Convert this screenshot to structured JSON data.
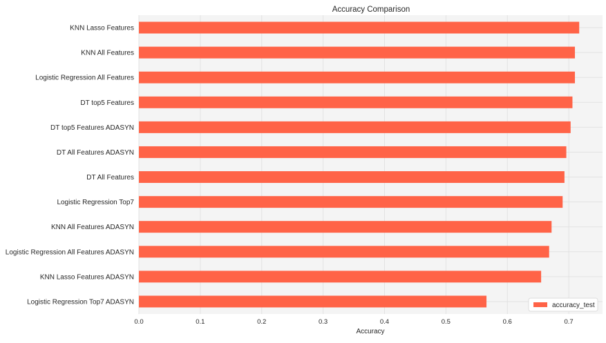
{
  "chart_data": {
    "type": "bar",
    "orientation": "horizontal",
    "title": "Accuracy Comparison",
    "xlabel": "Accuracy",
    "ylabel": "",
    "xlim": [
      0,
      0.755
    ],
    "xticks": [
      0.0,
      0.1,
      0.2,
      0.3,
      0.4,
      0.5,
      0.6,
      0.7
    ],
    "xtick_labels": [
      "0.0",
      "0.1",
      "0.2",
      "0.3",
      "0.4",
      "0.5",
      "0.6",
      "0.7"
    ],
    "grid": true,
    "legend_position": "bottom-right",
    "categories": [
      "KNN Lasso Features",
      "KNN All Features",
      "Logistic Regression All Features",
      "DT top5 Features",
      "DT top5 Features ADASYN",
      "DT All Features ADASYN",
      "DT All Features",
      "Logistic Regression Top7",
      "KNN All Features ADASYN",
      "Logistic Regression All Features ADASYN",
      "KNN Lasso Features ADASYN",
      "Logistic Regression Top7 ADASYN"
    ],
    "series": [
      {
        "name": "accuracy_test",
        "color": "#ff6347",
        "values": [
          0.717,
          0.71,
          0.71,
          0.706,
          0.703,
          0.696,
          0.693,
          0.69,
          0.672,
          0.668,
          0.655,
          0.566
        ]
      }
    ]
  },
  "colors": {
    "plot_background": "#f4f4f4",
    "grid": "#e2e2e2",
    "bar": "#ff6347"
  }
}
